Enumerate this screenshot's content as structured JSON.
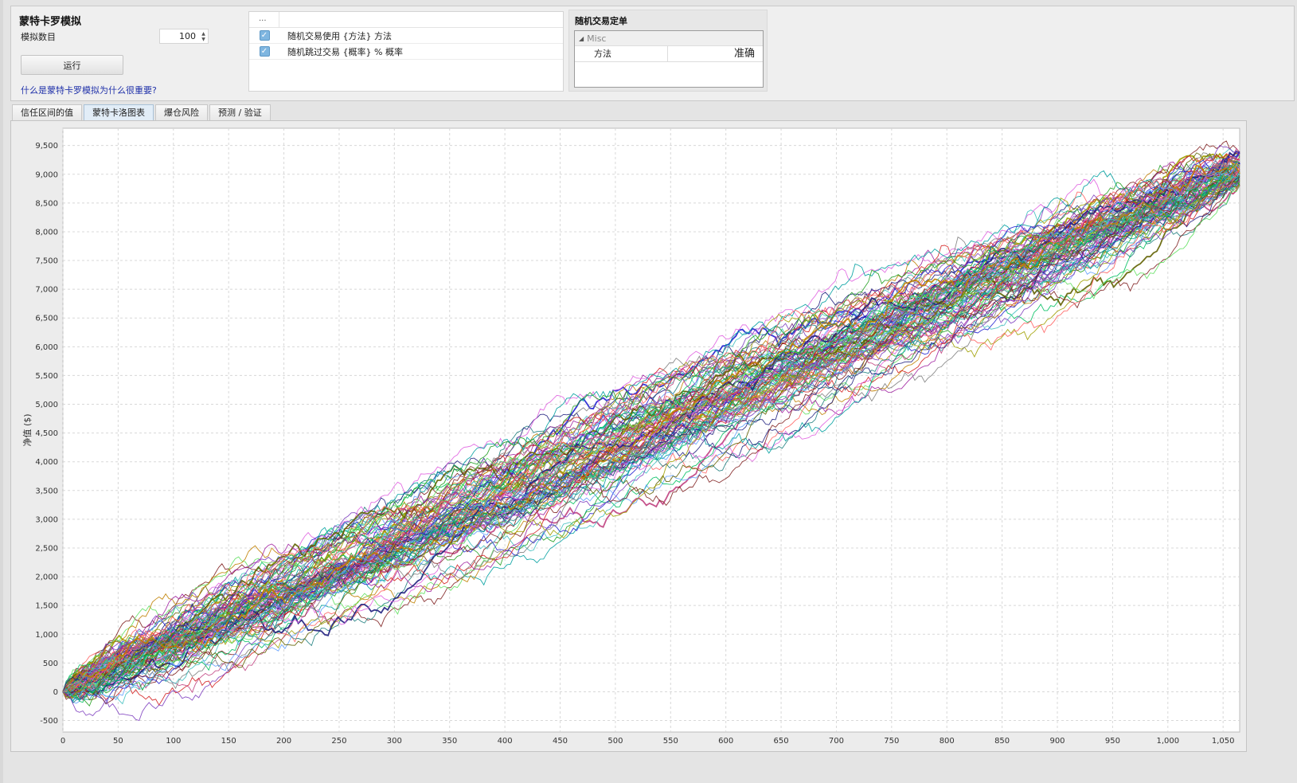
{
  "header": {
    "title": "蒙特卡罗模拟",
    "sim_count_label": "模拟数目",
    "sim_count_value": "100",
    "run_label": "运行",
    "help_link": "什么是蒙特卡罗模拟为什么很重要?"
  },
  "options": {
    "header_col": "...",
    "rows": [
      {
        "checked": true,
        "label": "随机交易使用 {方法} 方法"
      },
      {
        "checked": true,
        "label": "随机跳过交易 {概率} % 概率"
      }
    ]
  },
  "random_order": {
    "title": "随机交易定单",
    "category": "Misc",
    "property_name": "方法",
    "property_value": "准确"
  },
  "tabs": [
    {
      "label": "信任区间的值",
      "active": false
    },
    {
      "label": "蒙特卡洛图表",
      "active": true
    },
    {
      "label": "爆仓风险",
      "active": false
    },
    {
      "label": "预测 / 验证",
      "active": false
    }
  ],
  "chart_data": {
    "type": "line",
    "title": "",
    "xlabel": "",
    "ylabel": "净值 ($)",
    "xlim": [
      0,
      1065
    ],
    "ylim": [
      -700,
      9800
    ],
    "x_ticks": [
      0,
      50,
      100,
      150,
      200,
      250,
      300,
      350,
      400,
      450,
      500,
      550,
      600,
      650,
      700,
      750,
      800,
      850,
      900,
      950,
      1000,
      1050
    ],
    "x_tick_labels": [
      "0",
      "50",
      "100",
      "150",
      "200",
      "250",
      "300",
      "350",
      "400",
      "450",
      "500",
      "550",
      "600",
      "650",
      "700",
      "750",
      "800",
      "850",
      "900",
      "950",
      "1,000",
      "1,050"
    ],
    "y_ticks": [
      -500,
      0,
      500,
      1000,
      1500,
      2000,
      2500,
      3000,
      3500,
      4000,
      4500,
      5000,
      5500,
      6000,
      6500,
      7000,
      7500,
      8000,
      8500,
      9000,
      9500
    ],
    "y_tick_labels": [
      "-500",
      "0",
      "500",
      "1,000",
      "1,500",
      "2,000",
      "2,500",
      "3,000",
      "3,500",
      "4,000",
      "4,500",
      "5,000",
      "5,500",
      "6,000",
      "6,500",
      "7,000",
      "7,500",
      "8,000",
      "8,500",
      "9,000",
      "9,500"
    ],
    "grid": true,
    "legend": "none",
    "series_count": 100,
    "trades_per_path": 1065,
    "start_value": 0,
    "end_value_range": [
      8800,
      9400
    ],
    "max_value": 9500,
    "min_value": -200,
    "series_colors": [
      "#2020d0",
      "#d42020",
      "#20a020",
      "#a020a0",
      "#00a0a0",
      "#c08000",
      "#e060e0",
      "#60e060",
      "#202080",
      "#802020",
      "#208080",
      "#606000",
      "#ff6060",
      "#60a0ff",
      "#a0a000",
      "#00c060",
      "#8040c0",
      "#c04080",
      "#40c0c0",
      "#808080"
    ]
  }
}
